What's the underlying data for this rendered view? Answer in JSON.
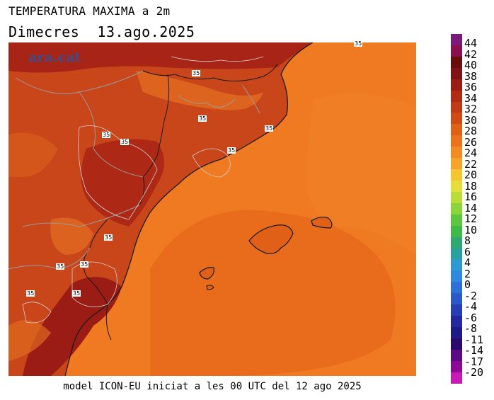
{
  "title": "TEMPERATURA MAXIMA a 2m",
  "subtitle": "Dimecres  13.ago.2025",
  "footer": "model ICON-EU iniciat a les 00 UTC del 12 ago 2025",
  "logo": "ara.cat",
  "contour_label": "35",
  "colorbar": {
    "labels": [
      "44",
      "42",
      "40",
      "38",
      "36",
      "34",
      "32",
      "30",
      "28",
      "26",
      "24",
      "22",
      "20",
      "18",
      "16",
      "14",
      "12",
      "10",
      "8",
      "6",
      "4",
      "2",
      "0",
      "-2",
      "-4",
      "-6",
      "-8",
      "-11",
      "-14",
      "-17",
      "-20"
    ],
    "colors": [
      "#7a1a7a",
      "#8a1050",
      "#6a0d0d",
      "#801414",
      "#9a1c14",
      "#b02a14",
      "#c03a16",
      "#d24a16",
      "#e06018",
      "#ec7220",
      "#f48a26",
      "#f6a32c",
      "#f6c632",
      "#e6dc3a",
      "#b8dc3a",
      "#8ad43c",
      "#5cc640",
      "#40b84a",
      "#30a870",
      "#2aa0a0",
      "#2e9ad0",
      "#3088e0",
      "#2f70d8",
      "#2c58c8",
      "#283eb8",
      "#2428a0",
      "#1e1a88",
      "#2a0a70",
      "#5a0a86",
      "#8a0a96",
      "#c81ab4"
    ]
  },
  "colors": {
    "sea": "#ef7a22",
    "sea_dark": "#e86a1c",
    "land_hot": "#a82416",
    "land_warm": "#c8461a",
    "land_mild": "#e06a20",
    "border": "#9a9a9a",
    "coast": "#1a1a1a"
  }
}
